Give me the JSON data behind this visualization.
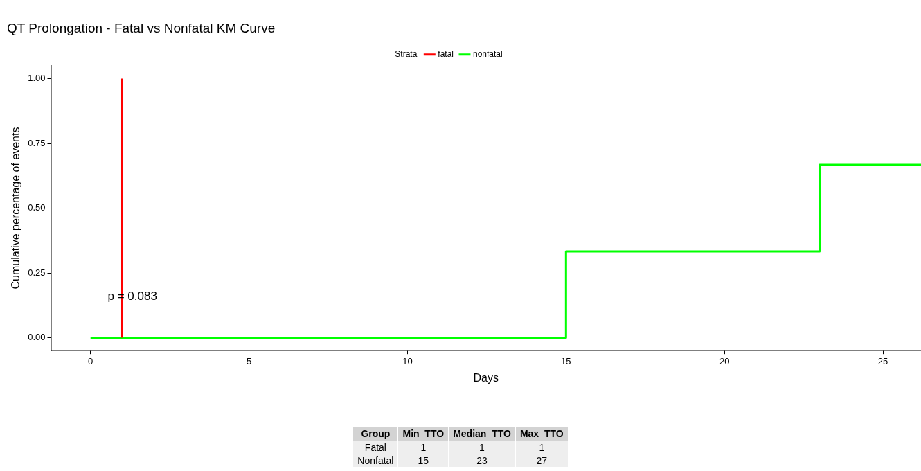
{
  "chart_data": [
    {
      "type": "step",
      "title": "QT Prolongation - Fatal vs Nonfatal KM Curve",
      "xlabel": "Days",
      "ylabel": "Cumulative percentage of events",
      "legend_title": "Strata",
      "legend": "top",
      "grid": false,
      "xlim": [
        -1.25,
        26.2
      ],
      "xticks": [
        0,
        5,
        10,
        15,
        20,
        25
      ],
      "ylim": [
        -0.05,
        1.05
      ],
      "yticks": [
        {
          "value": 0,
          "label": "0.00"
        },
        {
          "value": 0.25,
          "label": "0.25"
        },
        {
          "value": 0.5,
          "label": "0.50"
        },
        {
          "value": 0.75,
          "label": "0.75"
        },
        {
          "value": 1,
          "label": "1.00"
        }
      ],
      "annotations": [
        "p = 0.083"
      ],
      "series": [
        {
          "name": "fatal",
          "color": "#ff0000",
          "x": [
            1,
            1
          ],
          "values": [
            0,
            1
          ]
        },
        {
          "name": "nonfatal",
          "color": "#00ff00",
          "x": [
            0,
            15,
            23,
            26.2
          ],
          "values": [
            0,
            0.333,
            0.667,
            0.667
          ]
        }
      ]
    },
    {
      "type": "other",
      "ylabel": "Group",
      "categories": [
        "Min_TTO",
        "Median_TTO",
        "Max_TTO"
      ],
      "y_categories": [
        "Fatal",
        "Nonfatal"
      ],
      "cell_labels": [
        [
          "1",
          "1",
          "1"
        ],
        [
          "15",
          "23",
          "27"
        ]
      ]
    }
  ]
}
